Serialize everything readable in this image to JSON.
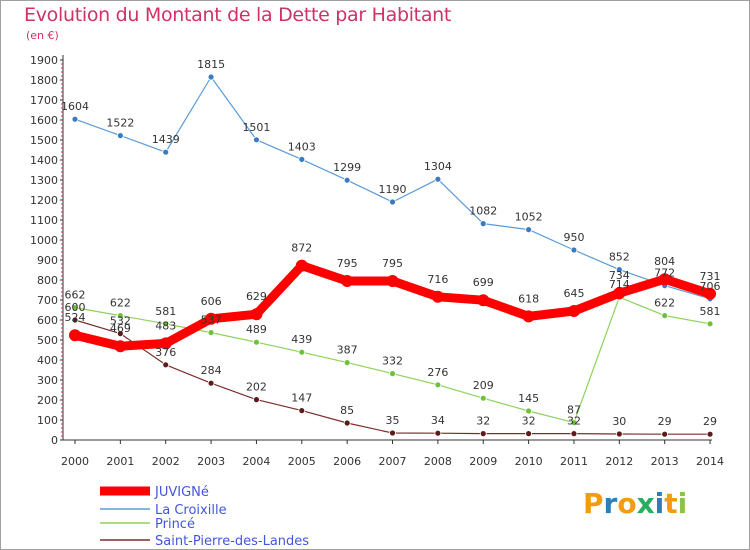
{
  "title": "Evolution du Montant de la Dette par Habitant",
  "subtitle": "(en €)",
  "logo": {
    "text": "Proxiti",
    "letters": [
      "P",
      "r",
      "o",
      "x",
      "i",
      "t",
      "i"
    ],
    "colors": [
      "#f39c12",
      "#2980b9",
      "#f39c12",
      "#27ae60",
      "#2980b9",
      "#f39c12",
      "#8bc34a"
    ]
  },
  "chart_data": {
    "type": "line",
    "title": "Evolution du Montant de la Dette par Habitant",
    "ylabel": "(en €)",
    "xlabel": "",
    "x": [
      "2000",
      "2001",
      "2002",
      "2003",
      "2004",
      "2005",
      "2006",
      "2007",
      "2008",
      "2009",
      "2010",
      "2011",
      "2012",
      "2013",
      "2014"
    ],
    "ylim": [
      0,
      1900
    ],
    "yticks": [
      0,
      100,
      200,
      300,
      400,
      500,
      600,
      700,
      800,
      900,
      1000,
      1100,
      1200,
      1300,
      1400,
      1500,
      1600,
      1700,
      1800,
      1900
    ],
    "grid": false,
    "legend_position": "bottom-left",
    "series": [
      {
        "name": "JUVIGNé",
        "color": "#ff0000",
        "values": [
          524,
          469,
          483,
          606,
          629,
          872,
          795,
          795,
          716,
          699,
          618,
          645,
          734,
          804,
          731
        ],
        "labels": [
          "524",
          "469",
          "483",
          "606",
          "629",
          "872",
          "795",
          "795",
          "716",
          "699",
          "618",
          "645",
          "734",
          "804",
          "731"
        ]
      },
      {
        "name": "La Croixille",
        "color": "#5b9bd5",
        "values": [
          1604,
          1522,
          1439,
          1815,
          1501,
          1403,
          1299,
          1190,
          1304,
          1082,
          1052,
          950,
          852,
          772,
          706
        ],
        "labels": [
          "1604",
          "1522",
          "1439",
          "1815",
          "1501",
          "1403",
          "1299",
          "1190",
          "1304",
          "1082",
          "1052",
          "950",
          "852",
          "772",
          "706"
        ]
      },
      {
        "name": "Princé",
        "color": "#8fd15e",
        "values": [
          662,
          622,
          581,
          537,
          489,
          439,
          387,
          332,
          276,
          209,
          145,
          87,
          714,
          622,
          581
        ],
        "labels": [
          "662",
          "622",
          "581",
          "537",
          "489",
          "439",
          "387",
          "332",
          "276",
          "209",
          "145",
          "87",
          "714",
          "622",
          "581"
        ]
      },
      {
        "name": "Saint-Pierre-des-Landes",
        "color": "#7b2d2d",
        "values": [
          600,
          532,
          376,
          284,
          202,
          147,
          85,
          35,
          34,
          32,
          32,
          32,
          30,
          29,
          29
        ],
        "labels": [
          "600",
          "532",
          "376",
          "284",
          "202",
          "147",
          "85",
          "35",
          "34",
          "32",
          "32",
          "32",
          "30",
          "29",
          "29"
        ]
      }
    ]
  }
}
